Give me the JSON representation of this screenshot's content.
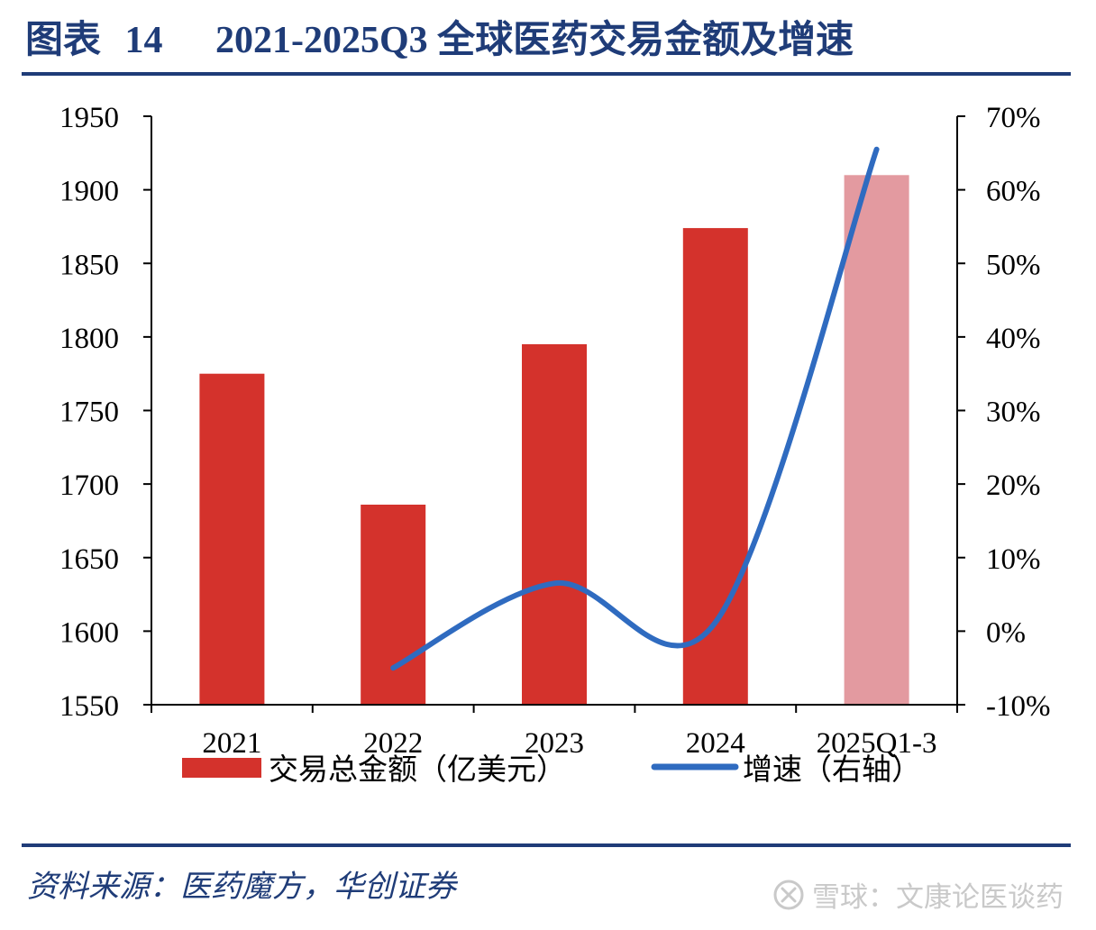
{
  "figure": {
    "label": "图表",
    "number": "14",
    "title": "2021-2025Q3 全球医药交易金额及增速"
  },
  "source_text": "资料来源：医药魔方，华创证券",
  "watermark_text": "雪球：文康论医谈药",
  "chart_data": {
    "type": "bar+line",
    "categories": [
      "2021",
      "2022",
      "2023",
      "2024",
      "2025Q1-3"
    ],
    "series": [
      {
        "name": "交易总金额（亿美元）",
        "type": "bar",
        "axis": "left",
        "values": [
          1775,
          1686,
          1795,
          1874,
          1910
        ],
        "colors": [
          "#d4322c",
          "#d4322c",
          "#d4322c",
          "#d4322c",
          "#e39aa0"
        ]
      },
      {
        "name": "增速（右轴）",
        "type": "line",
        "axis": "right",
        "smooth": true,
        "color": "#2f6bc0",
        "values": [
          null,
          -5.0,
          6.5,
          1.2,
          65.5
        ]
      }
    ],
    "left_axis": {
      "min": 1550,
      "max": 1950,
      "ticks": [
        "1550",
        "1600",
        "1650",
        "1700",
        "1750",
        "1800",
        "1850",
        "1900",
        "1950"
      ]
    },
    "right_axis": {
      "min": -10,
      "max": 70,
      "ticks": [
        "-10%",
        "0%",
        "10%",
        "20%",
        "30%",
        "40%",
        "50%",
        "60%",
        "70%"
      ]
    },
    "legend_position": "bottom",
    "grid": false
  }
}
